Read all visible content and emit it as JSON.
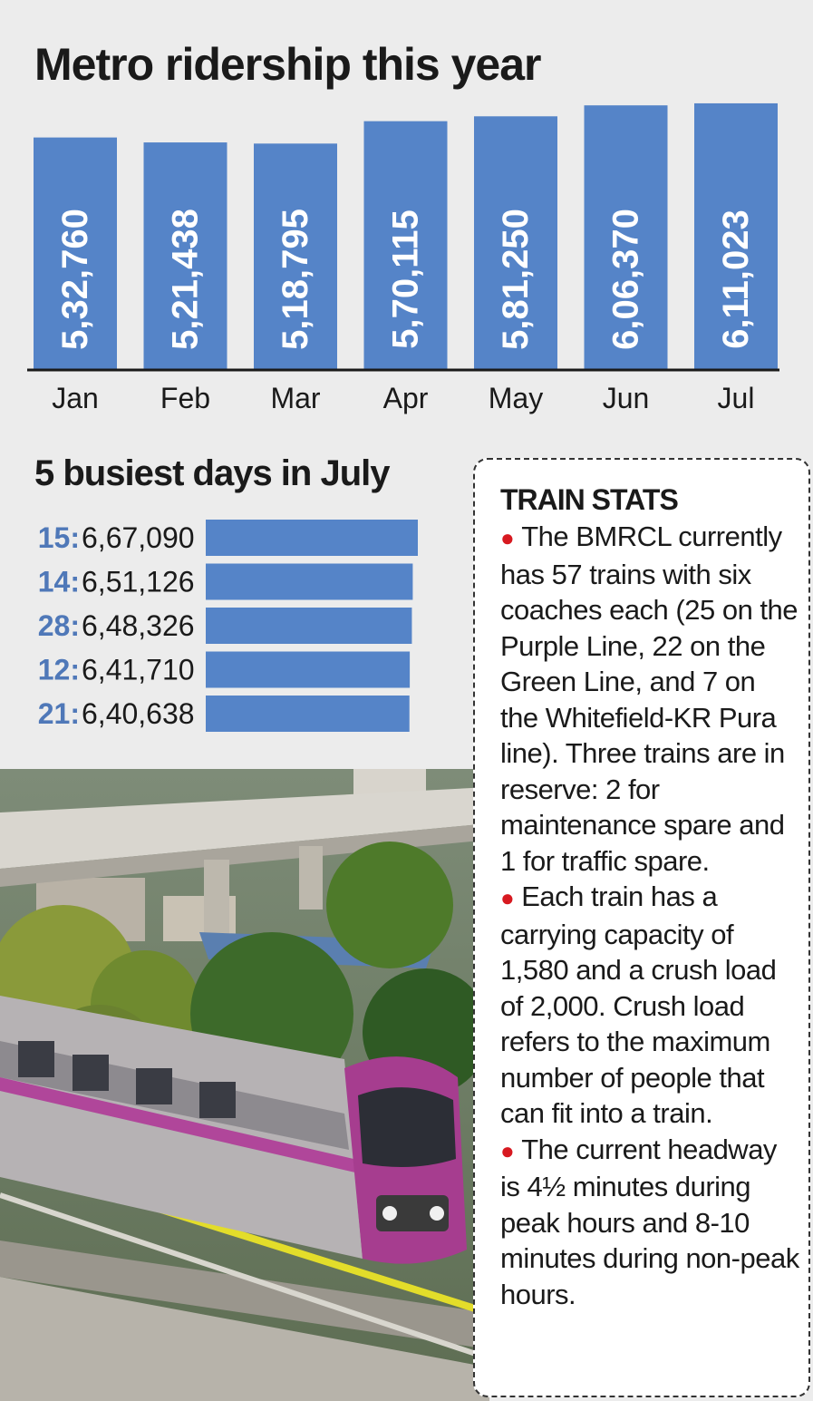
{
  "headline": "Metro ridership this year",
  "chart_data": [
    {
      "type": "bar",
      "orientation": "vertical",
      "title": "Metro ridership this year",
      "categories": [
        "Jan",
        "Feb",
        "Mar",
        "Apr",
        "May",
        "Jun",
        "Jul"
      ],
      "values": [
        532760,
        521438,
        518795,
        570115,
        581250,
        606370,
        611023
      ],
      "value_labels": [
        "5,32,760",
        "5,21,438",
        "5,18,795",
        "5,70,115",
        "5,81,250",
        "6,06,370",
        "6,11,023"
      ],
      "bar_color": "#5584c8",
      "ylim": [
        0,
        640000
      ]
    },
    {
      "type": "bar",
      "orientation": "horizontal",
      "title": "5 busiest days in July",
      "categories": [
        "15",
        "14",
        "28",
        "12",
        "21"
      ],
      "values": [
        667090,
        651126,
        648326,
        641710,
        640638
      ],
      "value_labels": [
        "6,67,090",
        "6,51,126",
        "6,48,326",
        "6,41,710",
        "6,40,638"
      ],
      "bar_color": "#5584c8",
      "label_color": "#4f78b8"
    }
  ],
  "busiest_title": "5 busiest days in July",
  "stats": {
    "title": "TRAIN STATS",
    "bullet_color": "#d71920",
    "items": [
      "The BMRCL currently has 57 trains with six coaches each (25 on the Purple Line, 22 on the Green Line, and 7 on the Whitefield-KR Pura line). Three trains are in reserve: 2 for maintenance spare and 1 for traffic spare.",
      "Each train has a carrying capacity of 1,580 and a crush load of 2,000. Crush load refers to the maximum number of people that can fit into a train.",
      "The current headway is 4½ minutes during peak hours and 8-10 minutes during non-peak hours."
    ]
  }
}
